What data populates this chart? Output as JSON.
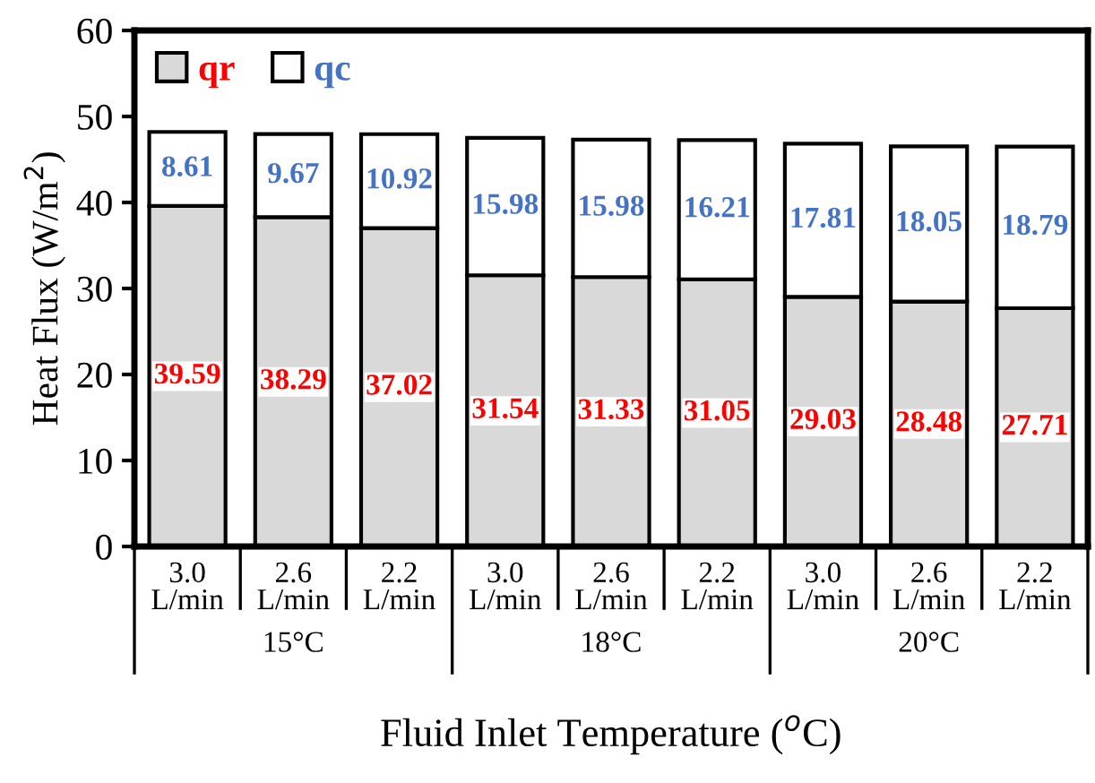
{
  "chart_data": {
    "type": "bar",
    "stacked": true,
    "categories": [
      "3.0\nL/min",
      "2.6\nL/min",
      "2.2\nL/min",
      "3.0\nL/min",
      "2.6\nL/min",
      "2.2\nL/min",
      "3.0\nL/min",
      "2.6\nL/min",
      "2.2\nL/min"
    ],
    "series": [
      {
        "name": "qr",
        "color": "#d9d9d9",
        "values": [
          39.59,
          38.29,
          37.02,
          31.54,
          31.33,
          31.05,
          29.03,
          28.48,
          27.71
        ]
      },
      {
        "name": "qc",
        "color": "#ffffff",
        "values": [
          8.61,
          9.67,
          10.92,
          15.98,
          15.98,
          16.21,
          17.81,
          18.05,
          18.79
        ]
      }
    ],
    "data_labels": true,
    "ylim": [
      0,
      60
    ],
    "yticks": [
      0,
      10,
      20,
      30,
      40,
      50,
      60
    ],
    "ylabel": "Heat Flux (W/m$^{2}$)",
    "xlabel": "Fluid Inlet Temperature ($^{o}$C)",
    "annotations": [
      "15°C",
      "18°C",
      "20°C"
    ],
    "grid": false,
    "legend": "top left"
  }
}
